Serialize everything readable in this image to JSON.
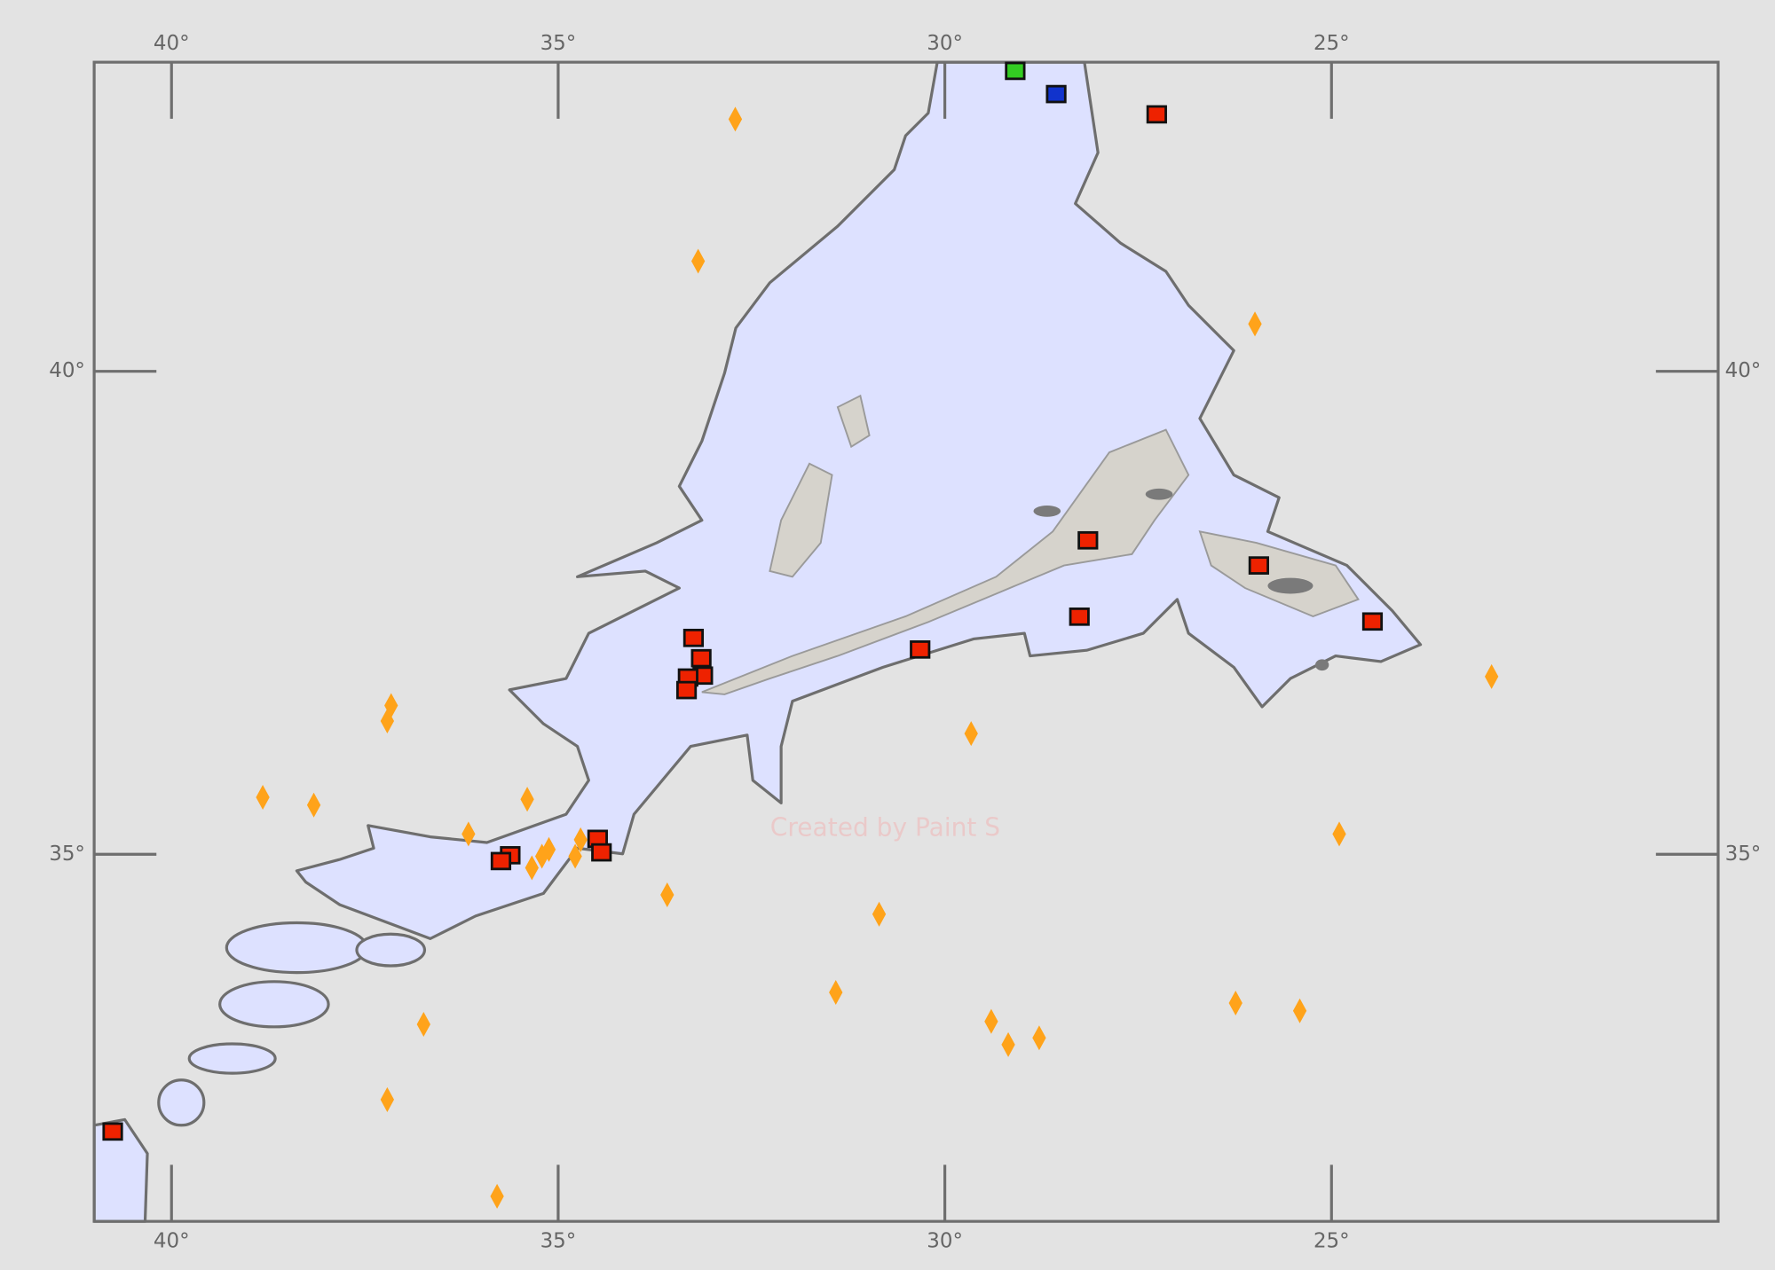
{
  "chart_data": {
    "type": "map",
    "xlim": [
      41,
      20
    ],
    "ylim": [
      31.2,
      43.2
    ],
    "xticks": [
      {
        "value": 40,
        "label": "40°"
      },
      {
        "value": 35,
        "label": "35°"
      },
      {
        "value": 30,
        "label": "30°"
      },
      {
        "value": 25,
        "label": "25°"
      }
    ],
    "yticks": [
      {
        "value": 40,
        "label": "40°"
      },
      {
        "value": 35,
        "label": "35°"
      }
    ],
    "watermark": "Created by Paint S",
    "series": [
      {
        "color": "#ee2200",
        "marker": "square",
        "x": [
          27.26,
          28.15,
          25.94,
          24.47,
          28.26,
          30.32,
          33.25,
          33.15,
          33.13,
          33.32,
          33.34,
          34.49,
          34.44,
          35.62,
          35.74,
          40.76
        ],
        "y": [
          42.66,
          38.25,
          37.99,
          37.41,
          37.46,
          37.12,
          37.24,
          37.03,
          36.85,
          36.83,
          36.7,
          35.16,
          35.02,
          34.99,
          34.93,
          32.13
        ]
      },
      {
        "color": "#33cc22",
        "marker": "square",
        "x": [
          29.09
        ],
        "y": [
          43.11
        ]
      },
      {
        "color": "#1133cc",
        "marker": "square",
        "x": [
          28.56
        ],
        "y": [
          42.87
        ]
      },
      {
        "color": "#ffa31a",
        "marker": "diamond",
        "x": [
          32.71,
          33.19,
          25.99,
          22.93,
          37.16,
          37.21,
          38.82,
          38.16,
          35.4,
          36.16,
          29.66,
          24.9,
          34.71,
          35.12,
          35.21,
          35.34,
          34.78,
          33.59,
          30.85,
          31.41,
          26.24,
          25.41,
          36.74,
          29.4,
          29.18,
          28.78,
          37.21,
          35.79
        ],
        "y": [
          42.61,
          41.14,
          40.49,
          36.84,
          36.54,
          36.38,
          35.59,
          35.51,
          35.57,
          35.21,
          36.25,
          35.21,
          35.15,
          35.05,
          34.98,
          34.86,
          34.98,
          34.58,
          34.38,
          33.57,
          33.46,
          33.38,
          33.24,
          33.27,
          33.03,
          33.1,
          32.46,
          31.46
        ]
      }
    ]
  }
}
